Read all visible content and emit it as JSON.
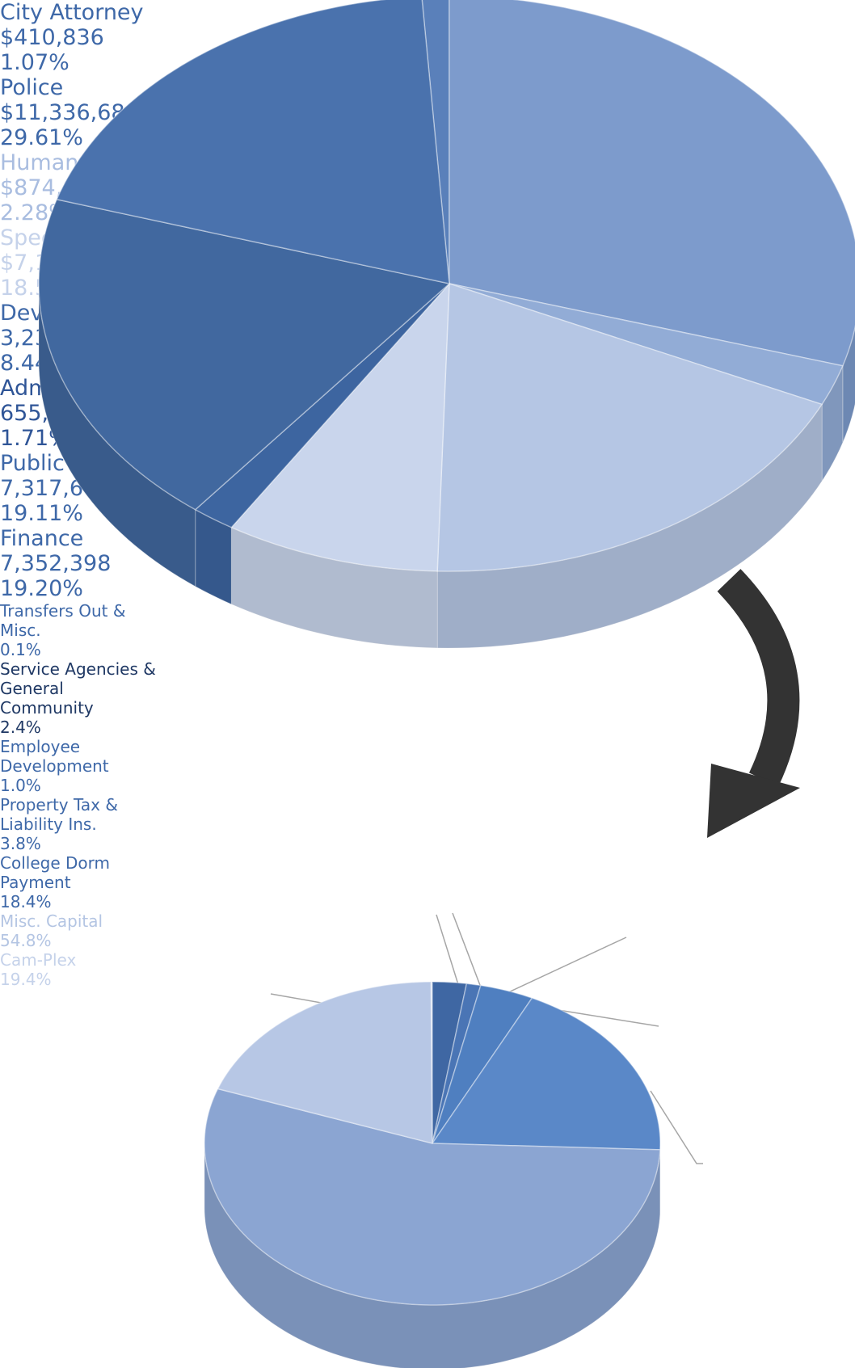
{
  "chart_data": [
    {
      "type": "pie",
      "categories": [
        "City Attorney",
        "Police",
        "Human Resources",
        "Special Projects",
        "Development Services",
        "Administration",
        "Public Works",
        "Finance"
      ],
      "amounts": [
        "$410,836",
        "$11,336,684",
        "$874,648",
        "$7,110,925",
        "3,230,075",
        "655,559",
        "7,317,602",
        "7,352,398"
      ],
      "values": [
        1.07,
        29.61,
        2.28,
        18.57,
        8.44,
        1.71,
        19.11,
        19.2
      ],
      "value_labels": [
        "1.07%",
        "29.61%",
        "2.28%",
        "18.57%",
        "8.44%",
        "1.71%",
        "19.11%",
        "19.20%"
      ],
      "colors": [
        "#5a80ba",
        "#7d9bcc",
        "#92acd6",
        "#b5c6e4",
        "#c9d5ec",
        "#3d65a0",
        "#41689f",
        "#4a72ad"
      ]
    },
    {
      "type": "pie",
      "categories": [
        "Transfers Out & Misc.",
        "Service Agencies & General Community",
        "Employee Development",
        "Property Tax & Liability Ins.",
        "College Dorm Payment",
        "Misc. Capital",
        "Cam-Plex"
      ],
      "values": [
        0.1,
        2.4,
        1.0,
        3.8,
        18.4,
        54.8,
        19.4
      ],
      "value_labels": [
        "0.1%",
        "2.4%",
        "1.0%",
        "3.8%",
        "18.4%",
        "54.8%",
        "19.4%"
      ],
      "colors": [
        "#cfd9ee",
        "#3f67a3",
        "#4a75b5",
        "#4f7fc0",
        "#5a88c8",
        "#8ba5d2",
        "#b7c7e5"
      ]
    }
  ]
}
